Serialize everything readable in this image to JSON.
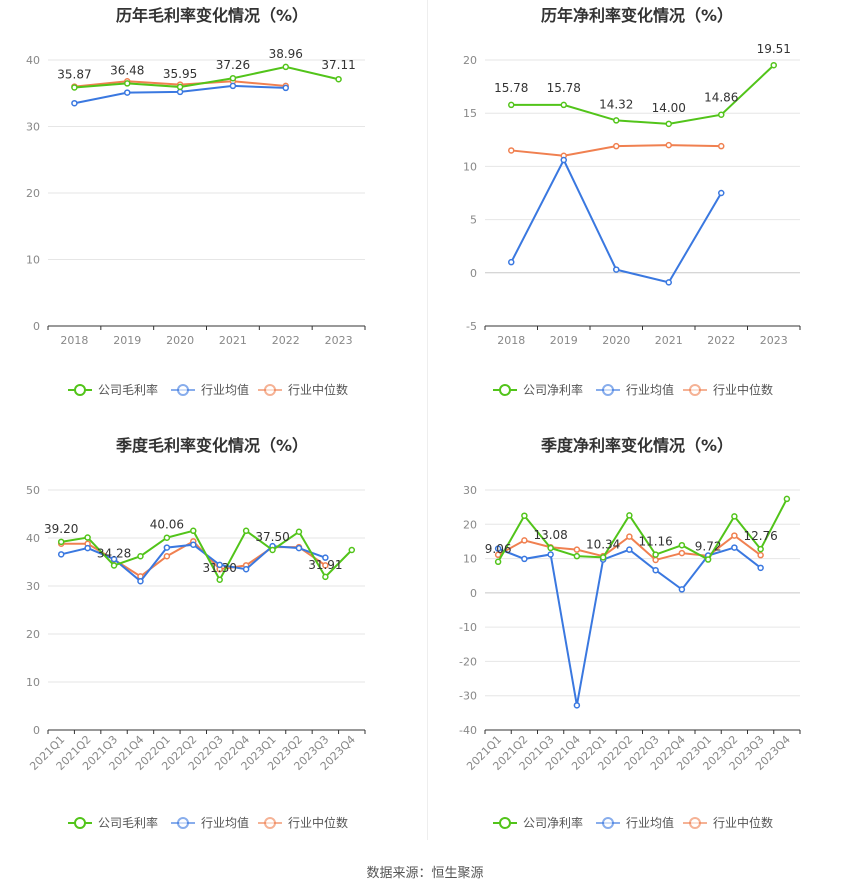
{
  "source_label": "数据来源：恒生聚源",
  "legend_labels": {
    "gross": [
      "公司毛利率",
      "行业均值",
      "行业中位数"
    ],
    "net": [
      "公司净利率",
      "行业均值",
      "行业中位数"
    ]
  },
  "colors": {
    "company": "#52c41a",
    "avg": "#3a78e0",
    "median": "#f08050"
  },
  "chart_data": [
    {
      "type": "line",
      "title": "历年毛利率变化情况（%）",
      "categories": [
        "2018",
        "2019",
        "2020",
        "2021",
        "2022",
        "2023"
      ],
      "ylim": [
        0,
        40
      ],
      "yticks": [
        0,
        10,
        20,
        30,
        40
      ],
      "series": [
        {
          "name": "公司毛利率",
          "values": [
            35.87,
            36.48,
            35.95,
            37.26,
            38.96,
            37.11
          ]
        },
        {
          "name": "行业均值",
          "values": [
            33.5,
            35.1,
            35.2,
            36.1,
            35.8,
            null
          ]
        },
        {
          "name": "行业中位数",
          "values": [
            36.0,
            36.8,
            36.3,
            36.8,
            36.1,
            null
          ]
        }
      ],
      "data_labels": [
        {
          "text": "35.87",
          "index": 0
        },
        {
          "text": "36.48",
          "index": 1
        },
        {
          "text": "35.95",
          "index": 2
        },
        {
          "text": "37.26",
          "index": 3
        },
        {
          "text": "38.96",
          "index": 4
        },
        {
          "text": "37.11",
          "index": 5
        }
      ]
    },
    {
      "type": "line",
      "title": "历年净利率变化情况（%）",
      "categories": [
        "2018",
        "2019",
        "2020",
        "2021",
        "2022",
        "2023"
      ],
      "ylim": [
        -5,
        20
      ],
      "yticks": [
        -5,
        0,
        5,
        10,
        15,
        20
      ],
      "series": [
        {
          "name": "公司净利率",
          "values": [
            15.78,
            15.78,
            14.32,
            14.0,
            14.86,
            19.51
          ]
        },
        {
          "name": "行业均值",
          "values": [
            1.0,
            10.6,
            0.3,
            -0.9,
            7.5,
            null
          ]
        },
        {
          "name": "行业中位数",
          "values": [
            11.5,
            11.0,
            11.9,
            12.0,
            11.9,
            null
          ]
        }
      ],
      "data_labels": [
        {
          "text": "15.78",
          "index": 0
        },
        {
          "text": "15.78",
          "index": 1
        },
        {
          "text": "14.32",
          "index": 2
        },
        {
          "text": "14.00",
          "index": 3
        },
        {
          "text": "14.86",
          "index": 4
        },
        {
          "text": "19.51",
          "index": 5
        }
      ]
    },
    {
      "type": "line",
      "title": "季度毛利率变化情况（%）",
      "categories": [
        "2021Q1",
        "2021Q2",
        "2021Q3",
        "2021Q4",
        "2022Q1",
        "2022Q2",
        "2022Q3",
        "2022Q4",
        "2023Q1",
        "2023Q2",
        "2023Q3",
        "2023Q4"
      ],
      "ylim": [
        0,
        50
      ],
      "yticks": [
        0,
        10,
        20,
        30,
        40,
        50
      ],
      "series": [
        {
          "name": "公司毛利率",
          "values": [
            39.2,
            40.1,
            34.28,
            36.2,
            40.06,
            41.5,
            31.3,
            41.5,
            37.5,
            41.3,
            31.9,
            37.5
          ]
        },
        {
          "name": "行业均值",
          "values": [
            36.6,
            37.9,
            35.6,
            31.0,
            38.0,
            38.6,
            34.4,
            33.5,
            38.3,
            37.9,
            35.9,
            null
          ]
        },
        {
          "name": "行业中位数",
          "values": [
            38.8,
            38.8,
            35.5,
            32.0,
            36.2,
            39.3,
            33.5,
            34.3,
            38.1,
            38.1,
            34.3,
            null
          ]
        }
      ],
      "data_labels": [
        {
          "text": "39.20",
          "index": 0
        },
        {
          "text": "34.28",
          "index": 2
        },
        {
          "text": "40.06",
          "index": 4
        },
        {
          "text": "31.30",
          "index": 6
        },
        {
          "text": "37.50",
          "index": 8
        },
        {
          "text": "31.91",
          "index": 10
        }
      ]
    },
    {
      "type": "line",
      "title": "季度净利率变化情况（%）",
      "categories": [
        "2021Q1",
        "2021Q2",
        "2021Q3",
        "2021Q4",
        "2022Q1",
        "2022Q2",
        "2022Q3",
        "2022Q4",
        "2023Q1",
        "2023Q2",
        "2023Q3",
        "2023Q4"
      ],
      "ylim": [
        -40,
        30
      ],
      "yticks": [
        -40,
        -30,
        -20,
        -10,
        0,
        10,
        20,
        30
      ],
      "series": [
        {
          "name": "公司净利率",
          "values": [
            9.06,
            22.5,
            13.08,
            10.7,
            10.34,
            22.6,
            11.16,
            13.9,
            9.72,
            22.3,
            12.76,
            27.4
          ]
        },
        {
          "name": "行业均值",
          "values": [
            12.9,
            9.9,
            11.2,
            -32.8,
            9.7,
            12.6,
            6.6,
            1.0,
            10.9,
            13.2,
            7.3,
            null
          ]
        },
        {
          "name": "行业中位数",
          "values": [
            11.1,
            15.3,
            13.3,
            12.6,
            10.7,
            16.4,
            9.6,
            11.6,
            10.8,
            16.7,
            11.0,
            null
          ]
        }
      ],
      "data_labels": [
        {
          "text": "9.06",
          "index": 0
        },
        {
          "text": "13.08",
          "index": 2
        },
        {
          "text": "10.34",
          "index": 4
        },
        {
          "text": "11.16",
          "index": 6
        },
        {
          "text": "9.72",
          "index": 8
        },
        {
          "text": "12.76",
          "index": 10
        }
      ]
    }
  ]
}
